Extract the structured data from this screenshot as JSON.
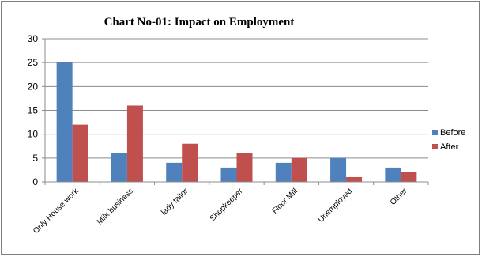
{
  "chart_data": {
    "type": "bar",
    "title": "Chart No-01: Impact on Employment",
    "xlabel": "",
    "ylabel": "",
    "ylim": [
      0,
      30
    ],
    "yticks": [
      "0",
      "5",
      "10",
      "15",
      "20",
      "25",
      "30"
    ],
    "grid": true,
    "legend_position": "right",
    "categories": [
      "Only House work",
      "Milk business",
      "lady tailor",
      "Shopkeeper",
      "Floor Mill",
      "Unemployed",
      "Other"
    ],
    "series": [
      {
        "name": "Before",
        "color": "#4f81bd",
        "values": [
          25,
          6,
          4,
          3,
          4,
          5,
          3
        ]
      },
      {
        "name": "After",
        "color": "#c0504d",
        "values": [
          12,
          16,
          8,
          6,
          5,
          1,
          2
        ]
      }
    ]
  }
}
